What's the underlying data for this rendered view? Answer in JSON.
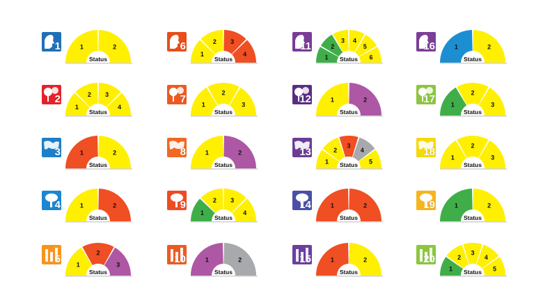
{
  "center_label": "Status",
  "palette": {
    "yellow": "#ffef00",
    "red": "#f04e23",
    "green": "#3fae49",
    "purple": "#ae57a4",
    "blue": "#1b8fd2",
    "gray": "#a7a9ac"
  },
  "gauges": [
    {
      "id": "1",
      "icon": "profile-face-icon",
      "icon_color": "#1f6fb8",
      "segments": [
        {
          "label": "1",
          "color": "yellow"
        },
        {
          "label": "2",
          "color": "yellow"
        }
      ]
    },
    {
      "id": "2",
      "icon": "trees-icon",
      "icon_color": "#e4222b",
      "segments": [
        {
          "label": "1",
          "color": "yellow"
        },
        {
          "label": "2",
          "color": "yellow"
        },
        {
          "label": "3",
          "color": "yellow"
        },
        {
          "label": "4",
          "color": "yellow"
        }
      ]
    },
    {
      "id": "3",
      "icon": "map-icon",
      "icon_color": "#1c7fc9",
      "segments": [
        {
          "label": "1",
          "color": "red"
        },
        {
          "label": "2",
          "color": "yellow"
        }
      ]
    },
    {
      "id": "4",
      "icon": "tree-icon",
      "icon_color": "#1c86d1",
      "segments": [
        {
          "label": "1",
          "color": "yellow"
        },
        {
          "label": "2",
          "color": "red"
        }
      ]
    },
    {
      "id": "5",
      "icon": "columns-icon",
      "icon_color": "#f7941d",
      "segments": [
        {
          "label": "1",
          "color": "yellow"
        },
        {
          "label": "2",
          "color": "red"
        },
        {
          "label": "3",
          "color": "purple"
        }
      ]
    },
    {
      "id": "6",
      "icon": "bird-icon",
      "icon_color": "#e84e1b",
      "segments": [
        {
          "label": "1",
          "color": "yellow"
        },
        {
          "label": "2",
          "color": "yellow"
        },
        {
          "label": "3",
          "color": "red"
        },
        {
          "label": "4",
          "color": "red"
        }
      ]
    },
    {
      "id": "7",
      "icon": "checklist-icon",
      "icon_color": "#ec5a24",
      "segments": [
        {
          "label": "1",
          "color": "yellow"
        },
        {
          "label": "2",
          "color": "yellow"
        },
        {
          "label": "3",
          "color": "yellow"
        }
      ]
    },
    {
      "id": "8",
      "icon": "landscape-icon",
      "icon_color": "#f26722",
      "segments": [
        {
          "label": "1",
          "color": "yellow"
        },
        {
          "label": "2",
          "color": "purple"
        }
      ]
    },
    {
      "id": "9",
      "icon": "cells-icon",
      "icon_color": "#ef4b23",
      "segments": [
        {
          "label": "1",
          "color": "green"
        },
        {
          "label": "2",
          "color": "yellow"
        },
        {
          "label": "3",
          "color": "yellow"
        },
        {
          "label": "4",
          "color": "yellow"
        }
      ]
    },
    {
      "id": "10",
      "icon": "splash-icon",
      "icon_color": "#ea5b24",
      "segments": [
        {
          "label": "1",
          "color": "purple"
        },
        {
          "label": "2",
          "color": "gray"
        }
      ]
    },
    {
      "id": "11",
      "icon": "bridge-icon",
      "icon_color": "#7a3b97",
      "segments": [
        {
          "label": "1",
          "color": "green"
        },
        {
          "label": "2",
          "color": "green"
        },
        {
          "label": "3",
          "color": "yellow"
        },
        {
          "label": "4",
          "color": "yellow"
        },
        {
          "label": "5",
          "color": "yellow"
        },
        {
          "label": "6",
          "color": "yellow"
        }
      ]
    },
    {
      "id": "12",
      "icon": "animal-icon",
      "icon_color": "#5a2d82",
      "segments": [
        {
          "label": "1",
          "color": "yellow"
        },
        {
          "label": "2",
          "color": "purple"
        }
      ]
    },
    {
      "id": "13",
      "icon": "leaf-icon",
      "icon_color": "#6a3d96",
      "segments": [
        {
          "label": "1",
          "color": "yellow"
        },
        {
          "label": "2",
          "color": "yellow"
        },
        {
          "label": "3",
          "color": "red"
        },
        {
          "label": "4",
          "color": "gray"
        },
        {
          "label": "5",
          "color": "yellow"
        }
      ]
    },
    {
      "id": "14",
      "icon": "water-icon",
      "icon_color": "#4a4fa8",
      "segments": [
        {
          "label": "1",
          "color": "red"
        },
        {
          "label": "2",
          "color": "red"
        }
      ]
    },
    {
      "id": "15",
      "icon": "bubbles-icon",
      "icon_color": "#6b3fa0",
      "segments": [
        {
          "label": "1",
          "color": "red"
        },
        {
          "label": "2",
          "color": "yellow"
        }
      ]
    },
    {
      "id": "16",
      "icon": "hat-icon",
      "icon_color": "#7b3f98",
      "segments": [
        {
          "label": "1",
          "color": "blue"
        },
        {
          "label": "2",
          "color": "yellow"
        }
      ]
    },
    {
      "id": "17",
      "icon": "thermometer-icon",
      "icon_color": "#8dc63f",
      "segments": [
        {
          "label": "1",
          "color": "green"
        },
        {
          "label": "2",
          "color": "yellow"
        },
        {
          "label": "3",
          "color": "yellow"
        }
      ]
    },
    {
      "id": "18",
      "icon": "plant-icon",
      "icon_color": "#f5d90a",
      "segments": [
        {
          "label": "1",
          "color": "yellow"
        },
        {
          "label": "2",
          "color": "yellow"
        },
        {
          "label": "3",
          "color": "yellow"
        }
      ]
    },
    {
      "id": "19",
      "icon": "statue-icon",
      "icon_color": "#f7b51d",
      "segments": [
        {
          "label": "1",
          "color": "green"
        },
        {
          "label": "2",
          "color": "yellow"
        }
      ]
    },
    {
      "id": "20",
      "icon": "sprout-icon",
      "icon_color": "#8cc63f",
      "segments": [
        {
          "label": "1",
          "color": "green"
        },
        {
          "label": "2",
          "color": "yellow"
        },
        {
          "label": "3",
          "color": "yellow"
        },
        {
          "label": "4",
          "color": "yellow"
        },
        {
          "label": "5",
          "color": "yellow"
        }
      ]
    }
  ]
}
